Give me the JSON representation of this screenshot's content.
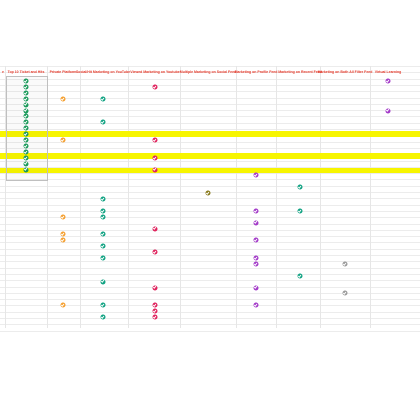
{
  "colors": {
    "header_text": "#e53b2c",
    "highlight": "#f7f500",
    "green": "#1a9a5a",
    "orange": "#f5a031",
    "teal": "#12a383",
    "crimson": "#e0245e",
    "purple": "#a43cc9",
    "gray": "#9b9b9b",
    "olive": "#8a7b1e"
  },
  "columns": [
    {
      "id": "c0",
      "label": "e"
    },
    {
      "id": "c1",
      "label": "Top 10 Ticket and Hits"
    },
    {
      "id": "c2",
      "label": "Private Platform"
    },
    {
      "id": "c3",
      "label": "Social/Hit Marketing on YouTube"
    },
    {
      "id": "c4",
      "label": "Viewed Marketing on Youtube"
    },
    {
      "id": "c5",
      "label": "Multiple Marketing on Social Feed"
    },
    {
      "id": "c6",
      "label": "Marketing on Profile Feed"
    },
    {
      "id": "c7",
      "label": "Marketing on Recent Feed"
    },
    {
      "id": "c8",
      "label": "Marketing on Both All Filter Feed"
    },
    {
      "id": "c9",
      "label": "Virtual Learning"
    }
  ],
  "highlighted_rows": [
    "row-5",
    "row-9",
    "row-12"
  ],
  "checkmarks": [
    {
      "col": "c1",
      "row": 0,
      "color": "green"
    },
    {
      "col": "c1",
      "row": 1,
      "color": "green"
    },
    {
      "col": "c1",
      "row": 2,
      "color": "green"
    },
    {
      "col": "c1",
      "row": 3,
      "color": "green"
    },
    {
      "col": "c1",
      "row": 4,
      "color": "green"
    },
    {
      "col": "c1",
      "row": 5,
      "color": "green"
    },
    {
      "col": "c1",
      "row": 6,
      "color": "green"
    },
    {
      "col": "c1",
      "row": 7,
      "color": "green"
    },
    {
      "col": "c1",
      "row": 8,
      "color": "green"
    },
    {
      "col": "c1",
      "row": 9,
      "color": "green"
    },
    {
      "col": "c1",
      "row": 10,
      "color": "green"
    },
    {
      "col": "c1",
      "row": 11,
      "color": "green"
    },
    {
      "col": "c1",
      "row": 12,
      "color": "green"
    },
    {
      "col": "c1",
      "row": 13,
      "color": "green"
    },
    {
      "col": "c1",
      "row": 14,
      "color": "green"
    },
    {
      "col": "c1",
      "row": 15,
      "color": "green"
    },
    {
      "col": "c2",
      "row": 3,
      "color": "orange"
    },
    {
      "col": "c2",
      "row": 10,
      "color": "orange"
    },
    {
      "col": "c2",
      "row": 23,
      "color": "orange"
    },
    {
      "col": "c2",
      "row": 26,
      "color": "orange"
    },
    {
      "col": "c2",
      "row": 27,
      "color": "orange"
    },
    {
      "col": "c2",
      "row": 38,
      "color": "orange"
    },
    {
      "col": "c3",
      "row": 3,
      "color": "teal"
    },
    {
      "col": "c3",
      "row": 7,
      "color": "teal"
    },
    {
      "col": "c3",
      "row": 20,
      "color": "teal"
    },
    {
      "col": "c3",
      "row": 22,
      "color": "teal"
    },
    {
      "col": "c3",
      "row": 23,
      "color": "teal"
    },
    {
      "col": "c3",
      "row": 26,
      "color": "teal"
    },
    {
      "col": "c3",
      "row": 28,
      "color": "teal"
    },
    {
      "col": "c3",
      "row": 30,
      "color": "teal"
    },
    {
      "col": "c3",
      "row": 34,
      "color": "teal"
    },
    {
      "col": "c3",
      "row": 38,
      "color": "teal"
    },
    {
      "col": "c3",
      "row": 40,
      "color": "teal"
    },
    {
      "col": "c4",
      "row": 1,
      "color": "crimson"
    },
    {
      "col": "c4",
      "row": 10,
      "color": "crimson"
    },
    {
      "col": "c4",
      "row": 13,
      "color": "crimson"
    },
    {
      "col": "c4",
      "row": 15,
      "color": "crimson"
    },
    {
      "col": "c4",
      "row": 25,
      "color": "crimson"
    },
    {
      "col": "c4",
      "row": 29,
      "color": "crimson"
    },
    {
      "col": "c4",
      "row": 35,
      "color": "crimson"
    },
    {
      "col": "c4",
      "row": 38,
      "color": "crimson"
    },
    {
      "col": "c4",
      "row": 39,
      "color": "crimson"
    },
    {
      "col": "c4",
      "row": 40,
      "color": "crimson"
    },
    {
      "col": "c5",
      "row": 19,
      "color": "olive"
    },
    {
      "col": "c6",
      "row": 16,
      "color": "purple"
    },
    {
      "col": "c6",
      "row": 22,
      "color": "purple"
    },
    {
      "col": "c6",
      "row": 24,
      "color": "purple"
    },
    {
      "col": "c6",
      "row": 27,
      "color": "purple"
    },
    {
      "col": "c6",
      "row": 30,
      "color": "purple"
    },
    {
      "col": "c6",
      "row": 31,
      "color": "purple"
    },
    {
      "col": "c6",
      "row": 35,
      "color": "purple"
    },
    {
      "col": "c6",
      "row": 38,
      "color": "purple"
    },
    {
      "col": "c7",
      "row": 18,
      "color": "teal"
    },
    {
      "col": "c7",
      "row": 22,
      "color": "teal"
    },
    {
      "col": "c7",
      "row": 33,
      "color": "teal"
    },
    {
      "col": "c8",
      "row": 31,
      "color": "gray"
    },
    {
      "col": "c8",
      "row": 36,
      "color": "gray"
    },
    {
      "col": "c9",
      "row": 0,
      "color": "purple"
    },
    {
      "col": "c9",
      "row": 5,
      "color": "purple"
    }
  ]
}
